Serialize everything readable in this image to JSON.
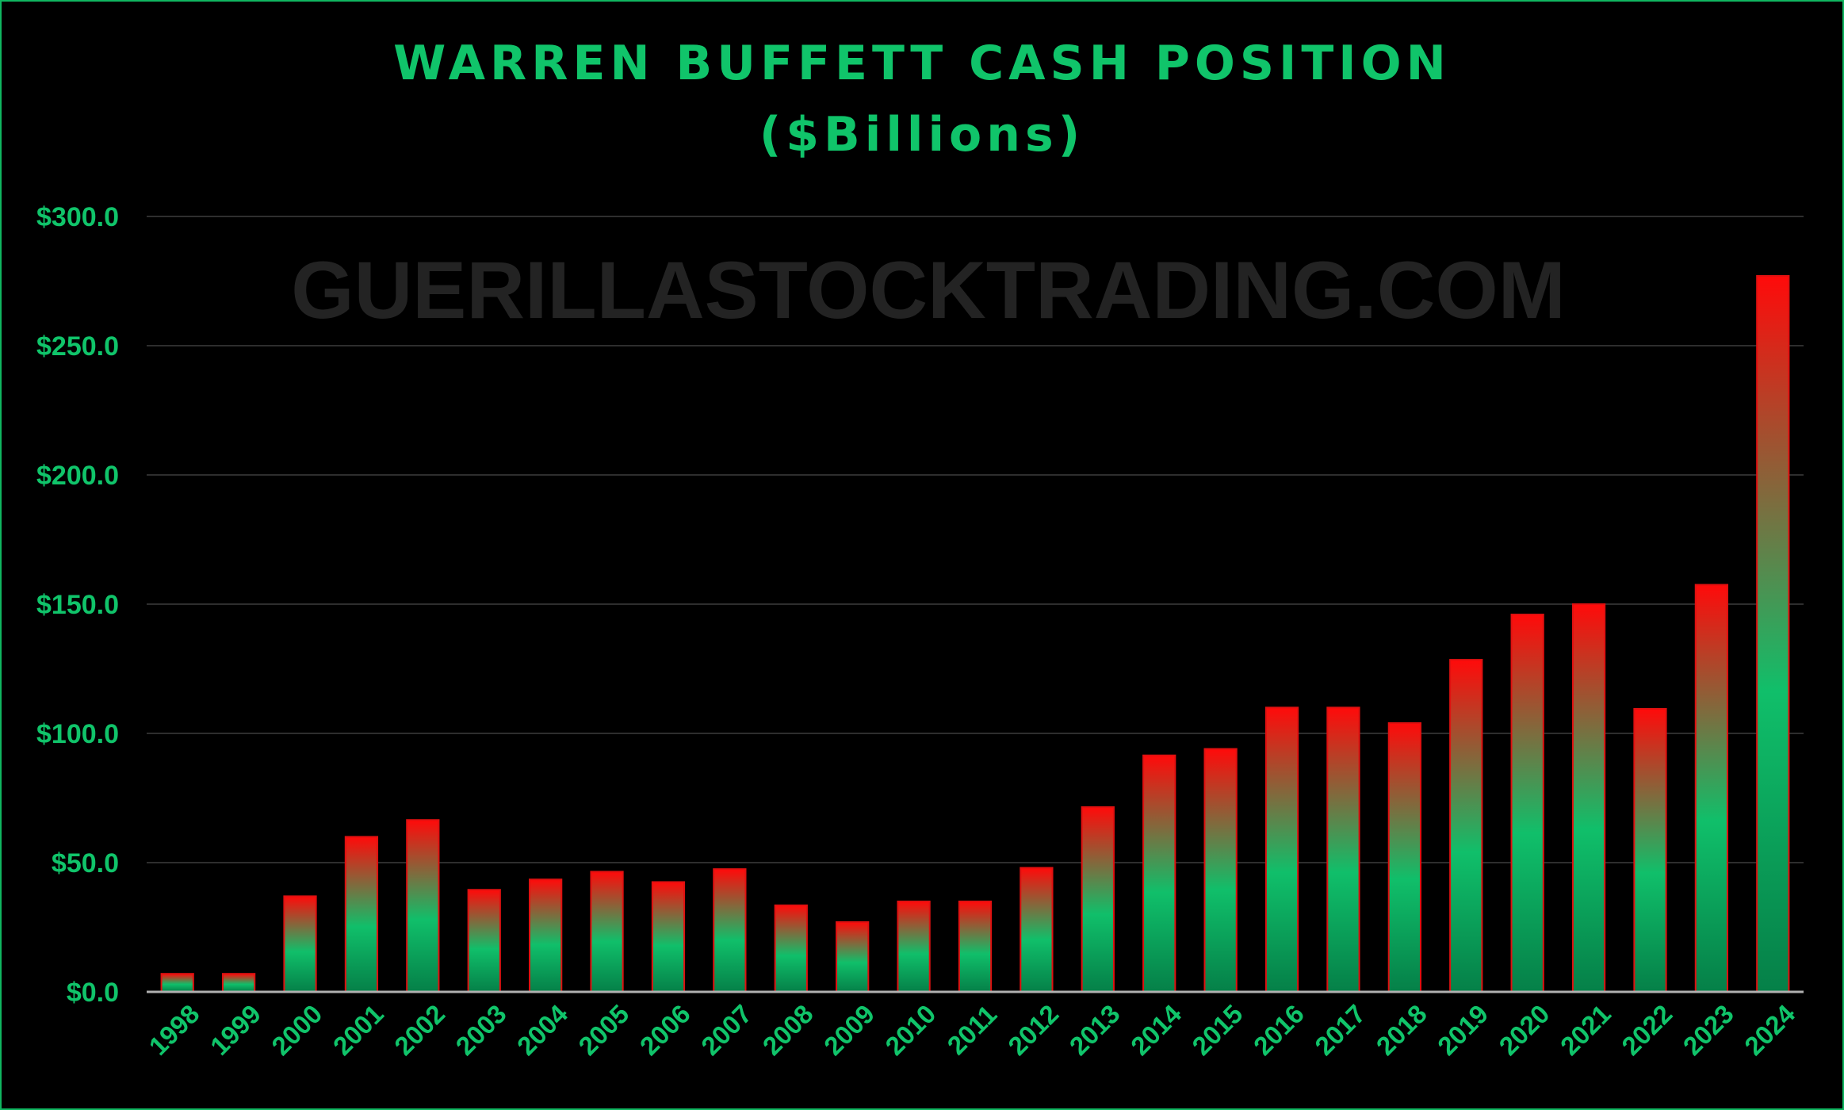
{
  "chart_data": {
    "type": "bar",
    "title": "WARREN BUFFETT CASH POSITION",
    "subtitle": "($Billions)",
    "watermark": "GUERILLASTOCKTRADING.COM",
    "xlabel": "",
    "ylabel": "",
    "ylim": [
      0,
      300
    ],
    "yticks": [
      0,
      50,
      100,
      150,
      200,
      250,
      300
    ],
    "ytick_labels": [
      "$0.0",
      "$50.0",
      "$100.0",
      "$150.0",
      "$200.0",
      "$250.0",
      "$300.0"
    ],
    "grid": true,
    "legend": "none",
    "categories": [
      "1998",
      "1999",
      "2000",
      "2001",
      "2002",
      "2003",
      "2004",
      "2005",
      "2006",
      "2007",
      "2008",
      "2009",
      "2010",
      "2011",
      "2012",
      "2013",
      "2014",
      "2015",
      "2016",
      "2017",
      "2018",
      "2019",
      "2020",
      "2021",
      "2022",
      "2023",
      "2024"
    ],
    "values": [
      7.0,
      7.0,
      37.0,
      60.0,
      66.5,
      39.5,
      43.5,
      46.5,
      42.5,
      47.5,
      33.5,
      27.0,
      35.0,
      35.0,
      48.0,
      71.5,
      91.5,
      94.0,
      110.0,
      110.0,
      104.0,
      128.5,
      146.0,
      150.0,
      109.5,
      157.5,
      277.0
    ],
    "colors": {
      "background": "#000000",
      "frame": "#10b660",
      "text": "#10c46a",
      "grid": "#2e2e2e",
      "axis": "#b0b0b0",
      "bar_top": "#ff0a0a",
      "bar_mid": "#10bf6a",
      "bar_bottom": "#058048",
      "bar_outline": "#e01010",
      "watermark": "#232323"
    }
  }
}
